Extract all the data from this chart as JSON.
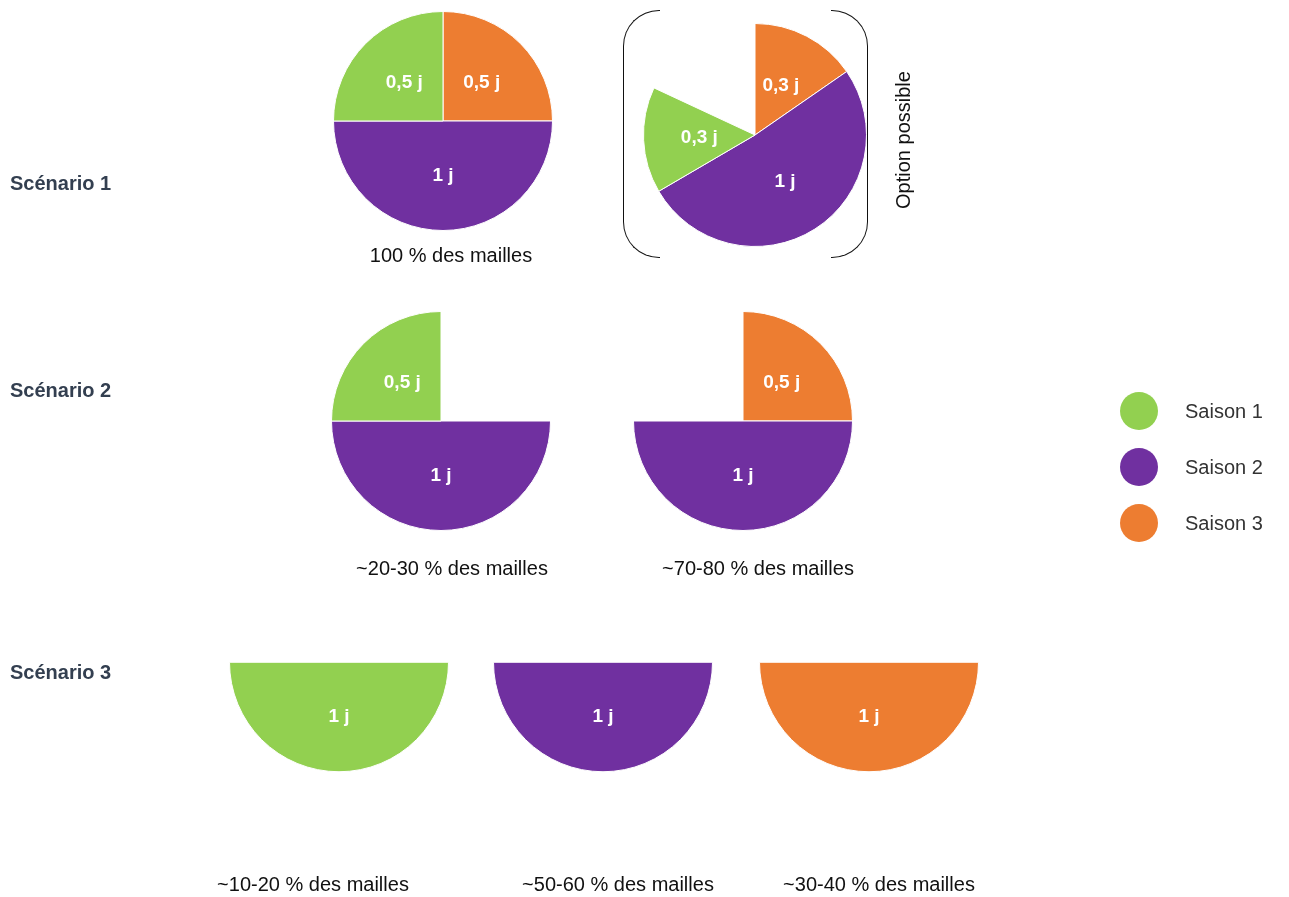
{
  "chart_data": [
    {
      "type": "pie",
      "title": "Scénario 1",
      "categories": [
        "Saison 1",
        "Saison 2",
        "Saison 3"
      ],
      "values": [
        0.5,
        1,
        0.5
      ],
      "colors": [
        "#92d050",
        "#7030a0",
        "#ed7d31"
      ],
      "value_labels": [
        "0,5 j",
        "1 j",
        "0,5 j"
      ],
      "annotations": [
        "100 % des mailles"
      ],
      "legend": "right"
    },
    {
      "type": "pie",
      "categories": [
        null,
        null,
        null
      ],
      "values": [
        0.3,
        1,
        0.3
      ],
      "colors": [
        "#92d050",
        "#7030a0",
        "#ed7d31"
      ],
      "value_labels": [
        "0,3 j",
        "1 j",
        "0,3 j"
      ],
      "annotations": [
        "Option possible"
      ]
    },
    {
      "type": "pie",
      "title": "Scénario 2",
      "categories": [
        null,
        null
      ],
      "values": [
        0.5,
        1
      ],
      "colors": [
        "#92d050",
        "#7030a0"
      ],
      "value_labels": [
        "0,5 j",
        "1 j"
      ],
      "annotations": [
        "~20-30 % des mailles"
      ]
    },
    {
      "type": "pie",
      "categories": [
        null,
        null
      ],
      "values": [
        1,
        0.5
      ],
      "colors": [
        "#7030a0",
        "#ed7d31"
      ],
      "value_labels": [
        "1 j",
        "0,5 j"
      ],
      "annotations": [
        "~70-80 % des mailles"
      ]
    },
    {
      "type": "pie",
      "title": "Scénario 3",
      "categories": [
        null
      ],
      "values": [
        1
      ],
      "colors": [
        "#92d050"
      ],
      "value_labels": [
        "1 j"
      ],
      "annotations": [
        "~10-20 % des mailles"
      ]
    },
    {
      "type": "pie",
      "categories": [
        null
      ],
      "values": [
        1
      ],
      "colors": [
        "#7030a0"
      ],
      "value_labels": [
        "1 j"
      ],
      "annotations": [
        "~50-60 % des mailles"
      ]
    },
    {
      "type": "pie",
      "categories": [
        null
      ],
      "values": [
        1
      ],
      "colors": [
        "#ed7d31"
      ],
      "value_labels": [
        "1 j"
      ],
      "annotations": [
        "~30-40 % des mailles"
      ]
    }
  ]
}
